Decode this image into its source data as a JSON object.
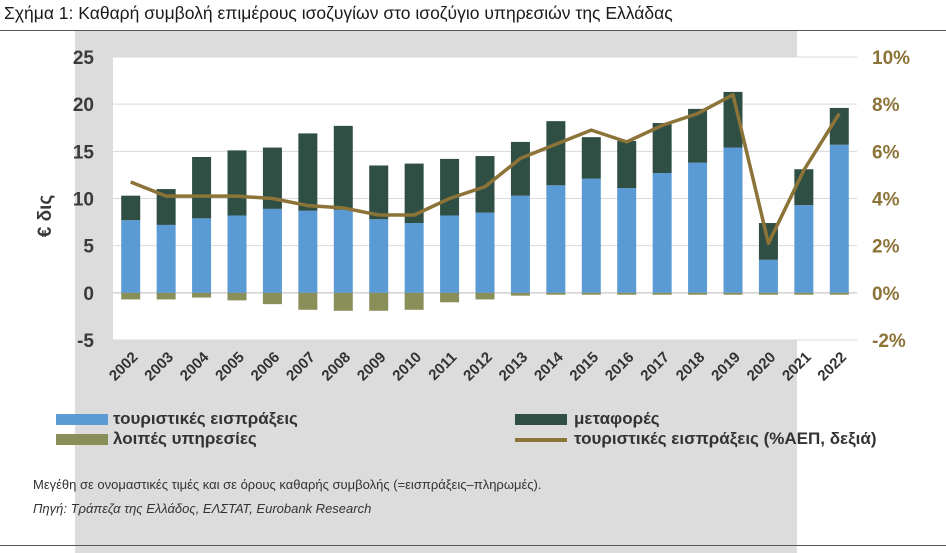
{
  "title": "Σχήμα 1:  Καθαρή συμβολή επιμέρους ισοζυγίων στο ισοζύγιο υπηρεσιών της Ελλάδας",
  "note": "Μεγέθη σε ονομαστικές τιμές και σε όρους καθαρής συμβολής (=εισπράξεις–πληρωμές).",
  "source": "Πηγή: Τράπεζα της Ελλάδος, ΕΛΣΤΑΤ, Eurobank Research",
  "colors": {
    "tourism": "#5b9bd5",
    "transport": "#2f4f45",
    "other": "#8a8f5a",
    "line": "#8c7338",
    "plot_bg": "#ffffff",
    "panel": "#dcdcdc"
  },
  "chart_data": {
    "type": "bar",
    "stacked": true,
    "categories": [
      "2002",
      "2003",
      "2004",
      "2005",
      "2006",
      "2007",
      "2008",
      "2009",
      "2010",
      "2011",
      "2012",
      "2013",
      "2014",
      "2015",
      "2016",
      "2017",
      "2018",
      "2019",
      "2020",
      "2021",
      "2022"
    ],
    "ylabel": "€ δις",
    "ylim": [
      -5,
      25
    ],
    "yticks": [
      "25",
      "20",
      "15",
      "10",
      "5",
      "0",
      "-5"
    ],
    "y2lim": [
      -2,
      10
    ],
    "y2ticks": [
      "10%",
      "8%",
      "6%",
      "4%",
      "2%",
      "0%",
      "-2%"
    ],
    "grid": true,
    "legend_position": "bottom",
    "series": [
      {
        "name": "τουριστικές εισπράξεις",
        "kind": "bar",
        "values": [
          7.7,
          7.2,
          7.9,
          8.2,
          8.9,
          8.7,
          8.8,
          7.8,
          7.4,
          8.2,
          8.5,
          10.3,
          11.4,
          12.1,
          11.1,
          12.7,
          13.8,
          15.4,
          3.5,
          9.3,
          15.7
        ]
      },
      {
        "name": "μεταφορές",
        "kind": "bar",
        "values": [
          2.6,
          3.8,
          6.5,
          6.9,
          6.5,
          8.2,
          8.9,
          5.7,
          6.3,
          6.0,
          6.0,
          5.7,
          6.8,
          4.4,
          5.0,
          5.3,
          5.7,
          5.9,
          3.9,
          3.8,
          3.9
        ]
      },
      {
        "name": "λοιπές υπηρεσίες",
        "kind": "bar",
        "values": [
          -0.7,
          -0.7,
          -0.5,
          -0.8,
          -1.2,
          -1.8,
          -1.9,
          -1.9,
          -1.8,
          -1.0,
          -0.7,
          -0.3,
          -0.2,
          -0.2,
          -0.2,
          -0.2,
          -0.2,
          -0.2,
          -0.2,
          -0.2,
          -0.2
        ]
      },
      {
        "name": "τουριστικές εισπράξεις (%ΑΕΠ, δεξιά)",
        "kind": "line",
        "axis": "right",
        "values": [
          4.7,
          4.1,
          4.1,
          4.1,
          4.0,
          3.7,
          3.6,
          3.3,
          3.3,
          4.0,
          4.5,
          5.7,
          6.3,
          6.9,
          6.4,
          7.1,
          7.6,
          8.4,
          2.1,
          5.2,
          7.6
        ]
      }
    ]
  }
}
